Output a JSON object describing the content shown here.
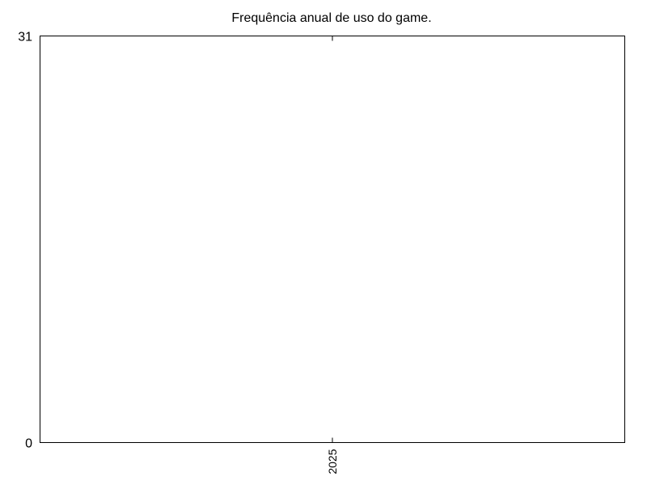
{
  "chart_data": {
    "type": "bar",
    "title": "Frequência anual de uso do game.",
    "xlabel": "",
    "ylabel": "",
    "categories": [
      "2025"
    ],
    "values": [
      0
    ],
    "ylim": [
      0,
      31
    ],
    "ytick_labels": [
      "0",
      "31"
    ],
    "grid": false,
    "legend": "none"
  }
}
